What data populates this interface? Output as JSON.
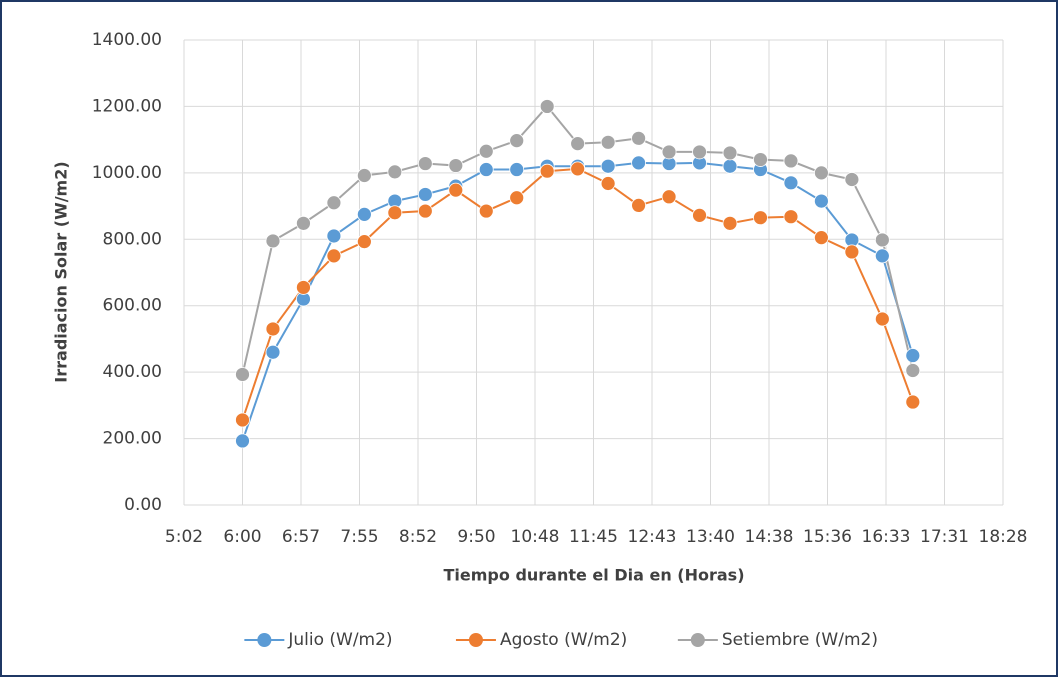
{
  "chart_data": {
    "type": "line",
    "xlabel": "Tiempo durante el Dia en (Horas)",
    "ylabel": "Irradiacion Solar (W/m2)",
    "x": [
      0.25,
      0.270833,
      0.291667,
      0.3125,
      0.333333,
      0.354167,
      0.375,
      0.395833,
      0.416667,
      0.4375,
      0.458333,
      0.479167,
      0.5,
      0.520833,
      0.541667,
      0.5625,
      0.583333,
      0.604167,
      0.625,
      0.645833,
      0.666667,
      0.6875,
      0.708333
    ],
    "series": [
      {
        "name": "Julio (W/m2)",
        "color": "#5b9bd5",
        "values": [
          193,
          460,
          620,
          810,
          875,
          915,
          935,
          960,
          1010,
          1010,
          1020,
          1020,
          1020,
          1030,
          1028,
          1030,
          1020,
          1010,
          970,
          915,
          798,
          750,
          450
        ]
      },
      {
        "name": "Agosto (W/m2)",
        "color": "#ed7d31",
        "values": [
          256,
          530,
          655,
          750,
          793,
          880,
          885,
          948,
          885,
          925,
          1005,
          1012,
          968,
          902,
          928,
          872,
          848,
          865,
          868,
          805,
          762,
          560,
          310
        ]
      },
      {
        "name": "Setiembre (W/m2)",
        "color": "#a5a5a5",
        "values": [
          393,
          795,
          848,
          910,
          992,
          1003,
          1028,
          1022,
          1065,
          1097,
          1200,
          1088,
          1092,
          1104,
          1063,
          1063,
          1060,
          1040,
          1036,
          1000,
          980,
          798,
          405
        ]
      }
    ],
    "xlim": [
      0.21,
      0.77
    ],
    "xticks": [
      {
        "value": 0.21,
        "label": "5:02"
      },
      {
        "value": 0.25,
        "label": "6:00"
      },
      {
        "value": 0.29,
        "label": "6:57"
      },
      {
        "value": 0.33,
        "label": "7:55"
      },
      {
        "value": 0.37,
        "label": "8:52"
      },
      {
        "value": 0.41,
        "label": "9:50"
      },
      {
        "value": 0.45,
        "label": "10:48"
      },
      {
        "value": 0.49,
        "label": "11:45"
      },
      {
        "value": 0.53,
        "label": "12:43"
      },
      {
        "value": 0.57,
        "label": "13:40"
      },
      {
        "value": 0.61,
        "label": "14:38"
      },
      {
        "value": 0.65,
        "label": "15:36"
      },
      {
        "value": 0.69,
        "label": "16:33"
      },
      {
        "value": 0.73,
        "label": "17:31"
      },
      {
        "value": 0.77,
        "label": "18:28"
      }
    ],
    "ylim": [
      0,
      1400
    ],
    "yticks": [
      {
        "value": 0,
        "label": "0.00"
      },
      {
        "value": 200,
        "label": "200.00"
      },
      {
        "value": 400,
        "label": "400.00"
      },
      {
        "value": 600,
        "label": "600.00"
      },
      {
        "value": 800,
        "label": "800.00"
      },
      {
        "value": 1000,
        "label": "1000.00"
      },
      {
        "value": 1200,
        "label": "1200.00"
      },
      {
        "value": 1400,
        "label": "1400.00"
      }
    ],
    "grid": true,
    "legend": "bottom"
  }
}
